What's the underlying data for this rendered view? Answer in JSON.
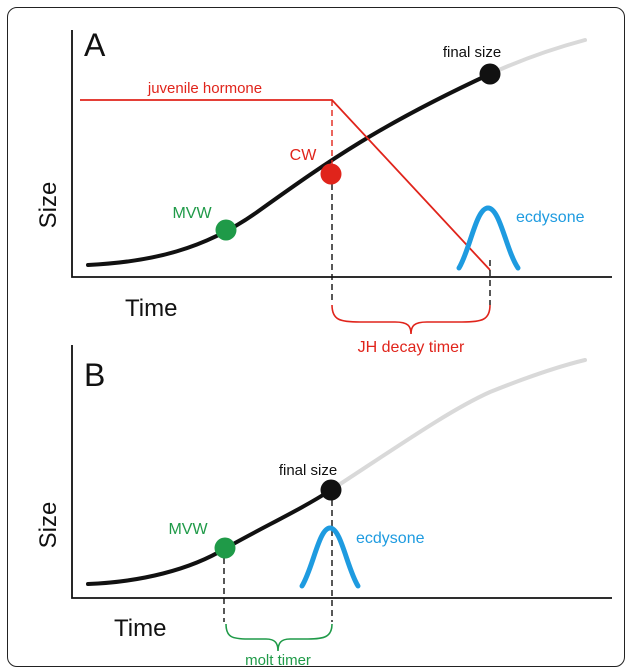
{
  "panel_a": {
    "letter": "A",
    "y_axis_label": "Size",
    "x_axis_label": "Time",
    "labels": {
      "final_size": "final size",
      "juvenile_hormone": "juvenile hormone",
      "cw": "CW",
      "mvw": "MVW",
      "ecdysone": "ecdysone",
      "timer": "JH decay timer"
    }
  },
  "panel_b": {
    "letter": "B",
    "y_axis_label": "Size",
    "x_axis_label": "Time",
    "labels": {
      "final_size": "final size",
      "mvw": "MVW",
      "ecdysone": "ecdysone",
      "timer": "molt timer"
    }
  },
  "colors": {
    "growth_curve": "#111111",
    "projected_growth": "#d9d9d9",
    "juvenile_hormone": "#e0241b",
    "cw_marker": "#e0241b",
    "mvw_marker": "#1f9a48",
    "ecdysone": "#1e9be0",
    "final_size_marker": "#111111",
    "jh_timer_brace": "#e0241b",
    "molt_timer_brace": "#1f9a48"
  }
}
